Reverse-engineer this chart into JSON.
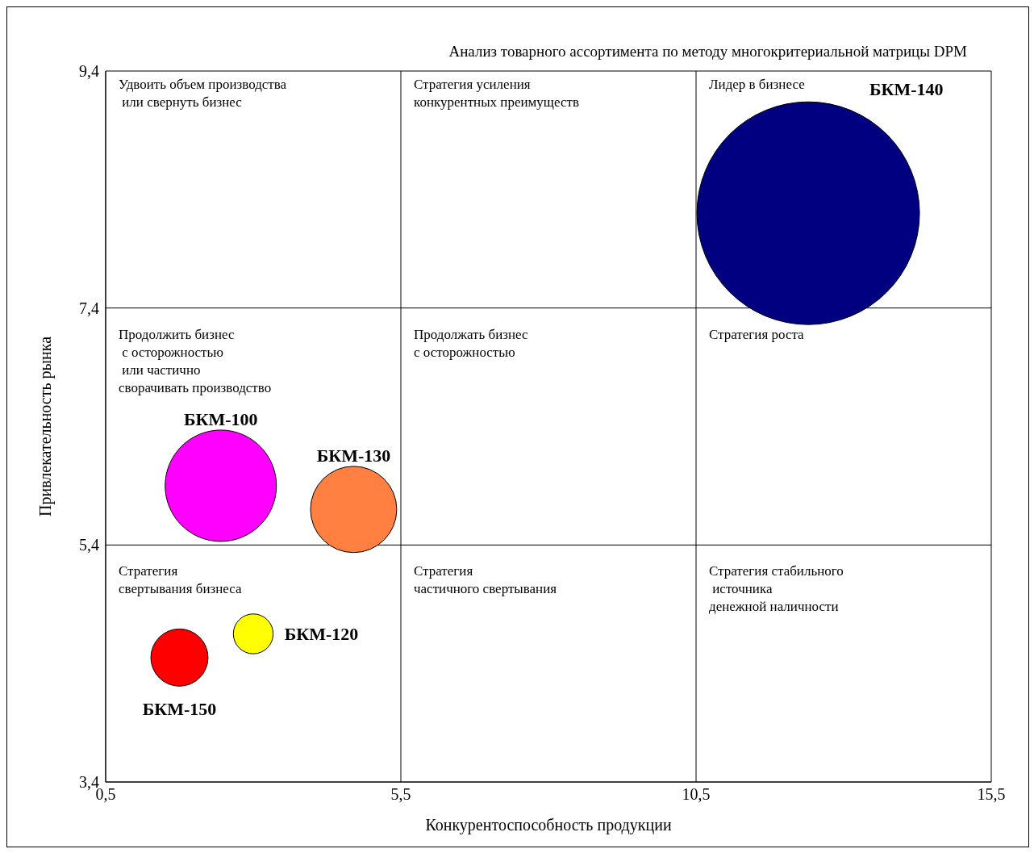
{
  "chart_data": {
    "type": "bubble",
    "title": "Анализ товарного ассортимента по методу многокритериальной матрицы DPM",
    "xlabel": "Конкурентоспособность продукции",
    "ylabel": "Привлекательность рынка",
    "xlim": [
      0.5,
      15.5
    ],
    "xticks": [
      {
        "value": 0.5,
        "label": "0,5"
      },
      {
        "value": 5.5,
        "label": "5,5"
      },
      {
        "value": 10.5,
        "label": "10,5"
      },
      {
        "value": 15.5,
        "label": "15,5"
      }
    ],
    "ylim": [
      3.4,
      9.4
    ],
    "yticks": [
      {
        "value": 3.4,
        "label": "3,4"
      },
      {
        "value": 5.4,
        "label": "5,4"
      },
      {
        "value": 7.4,
        "label": "7,4"
      },
      {
        "value": 9.4,
        "label": "9,4"
      }
    ],
    "grid": true,
    "series": [
      {
        "name": "БКМ-140",
        "color": "#000080",
        "x": [
          12.4
        ],
        "values": [
          8.2
        ],
        "sizes": [
          1
        ]
      },
      {
        "name": "БКМ-100",
        "color": "#ff00ff",
        "x": [
          2.45
        ],
        "values": [
          5.9
        ],
        "sizes": [
          0.25
        ]
      },
      {
        "name": "БКМ-130",
        "color": "#ff8040",
        "x": [
          4.7
        ],
        "values": [
          5.7
        ],
        "sizes": [
          0.15
        ]
      },
      {
        "name": "БКМ-150",
        "color": "#ff0000",
        "x": [
          1.75
        ],
        "values": [
          4.45
        ],
        "sizes": [
          0.066
        ]
      },
      {
        "name": "БКМ-120",
        "color": "#ffff00",
        "x": [
          3.0
        ],
        "values": [
          4.65
        ],
        "sizes": [
          0.032
        ]
      }
    ],
    "annotations": [
      "Удвоить объем производства\n или свернуть бизнес",
      "Стратегия усиления\nконкурентных преимуществ",
      "Лидер в бизнесе",
      "Продолжить бизнес\n с осторожностью\n или частично\nсворачивать производство",
      "Продолжать бизнес\nс осторожностью",
      "Стратегия роста",
      "Стратегия\nсвертывания бизнеса",
      "Стратегия\nчастичного свертывания",
      "Стратегия стабильного\n источника\nденежной наличности"
    ]
  }
}
